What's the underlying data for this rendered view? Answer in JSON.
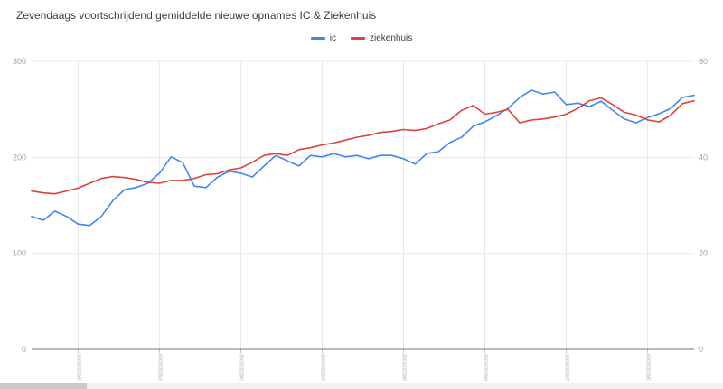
{
  "chart_data": {
    "type": "line",
    "title": "Zevendaags voortschrijdend gemiddelde nieuwe opnames IC & Ziekenhuis",
    "legend_position": "top",
    "grid": true,
    "left_axis": {
      "label": "",
      "min": 0,
      "max": 300,
      "ticks": [
        0,
        100,
        200,
        300
      ]
    },
    "right_axis": {
      "label": "",
      "min": 0,
      "max": 60,
      "ticks": [
        0,
        20,
        40,
        60
      ]
    },
    "x": [
      "24/02/2021",
      "25/02/2021",
      "26/02/2021",
      "27/02/2021",
      "28/02/2021",
      "01/03/2021",
      "02/03/2021",
      "03/03/2021",
      "04/03/2021",
      "05/03/2021",
      "06/03/2021",
      "07/03/2021",
      "08/03/2021",
      "09/03/2021",
      "10/03/2021",
      "11/03/2021",
      "12/03/2021",
      "13/03/2021",
      "14/03/2021",
      "15/03/2021",
      "16/03/2021",
      "17/03/2021",
      "18/03/2021",
      "19/03/2021",
      "20/03/2021",
      "21/03/2021",
      "22/03/2021",
      "23/03/2021",
      "24/03/2021",
      "25/03/2021",
      "26/03/2021",
      "27/03/2021",
      "28/03/2021",
      "29/03/2021",
      "30/03/2021",
      "31/03/2021",
      "01/04/2021",
      "02/04/2021",
      "03/04/2021",
      "04/04/2021",
      "05/04/2021",
      "06/04/2021",
      "07/04/2021",
      "08/04/2021",
      "09/04/2021",
      "10/04/2021",
      "11/04/2021",
      "12/04/2021",
      "13/04/2021",
      "14/04/2021",
      "15/04/2021",
      "16/04/2021",
      "17/04/2021",
      "18/04/2021",
      "19/04/2021",
      "20/04/2021",
      "21/04/2021",
      "22/04/2021"
    ],
    "x_ticks": [
      {
        "index": 4,
        "label": "28/02/2021 00:00:00"
      },
      {
        "index": 11,
        "label": "07/03/2021 00:00:00"
      },
      {
        "index": 18,
        "label": "14/03/2021 00:00:00"
      },
      {
        "index": 25,
        "label": "21/03/2021 00:00:00"
      },
      {
        "index": 32,
        "label": "28/03/2021 00:00:00"
      },
      {
        "index": 39,
        "label": "04/04/2021 00:00:00"
      },
      {
        "index": 46,
        "label": "11/04/2021 00:00:00"
      },
      {
        "index": 53,
        "label": "18/04/2021 00:00:00"
      }
    ],
    "series": [
      {
        "name": "ic",
        "color": "#4285f4",
        "axis": "right",
        "values": [
          27.7,
          26.9,
          28.8,
          27.7,
          26.1,
          25.8,
          27.7,
          31.0,
          33.3,
          33.7,
          34.6,
          36.7,
          40.1,
          38.9,
          34.0,
          33.7,
          35.9,
          37.1,
          36.7,
          35.9,
          38.2,
          40.4,
          39.3,
          38.2,
          40.4,
          40.1,
          40.8,
          40.1,
          40.4,
          39.7,
          40.4,
          40.4,
          39.7,
          38.6,
          40.8,
          41.2,
          43.1,
          44.2,
          46.5,
          47.4,
          48.7,
          50.2,
          52.5,
          54.0,
          53.2,
          53.6,
          51.0,
          51.3,
          50.6,
          51.7,
          49.8,
          48.0,
          47.2,
          48.3,
          49.1,
          50.2,
          52.5,
          52.9
        ]
      },
      {
        "name": "ziekenhuis",
        "color": "#db4437",
        "axis": "left",
        "values": [
          165,
          163,
          162,
          165,
          168,
          173,
          178,
          180,
          179,
          177,
          174,
          173,
          176,
          176,
          178,
          182,
          183,
          187,
          189,
          195,
          202,
          204,
          202,
          208,
          210,
          213,
          215,
          218,
          221,
          223,
          226,
          227,
          229,
          228,
          230,
          235,
          239,
          249,
          254,
          245,
          247,
          250,
          236,
          239,
          240,
          242,
          245,
          251,
          259,
          262,
          255,
          247,
          244,
          239,
          237,
          244,
          256,
          259
        ]
      }
    ]
  }
}
